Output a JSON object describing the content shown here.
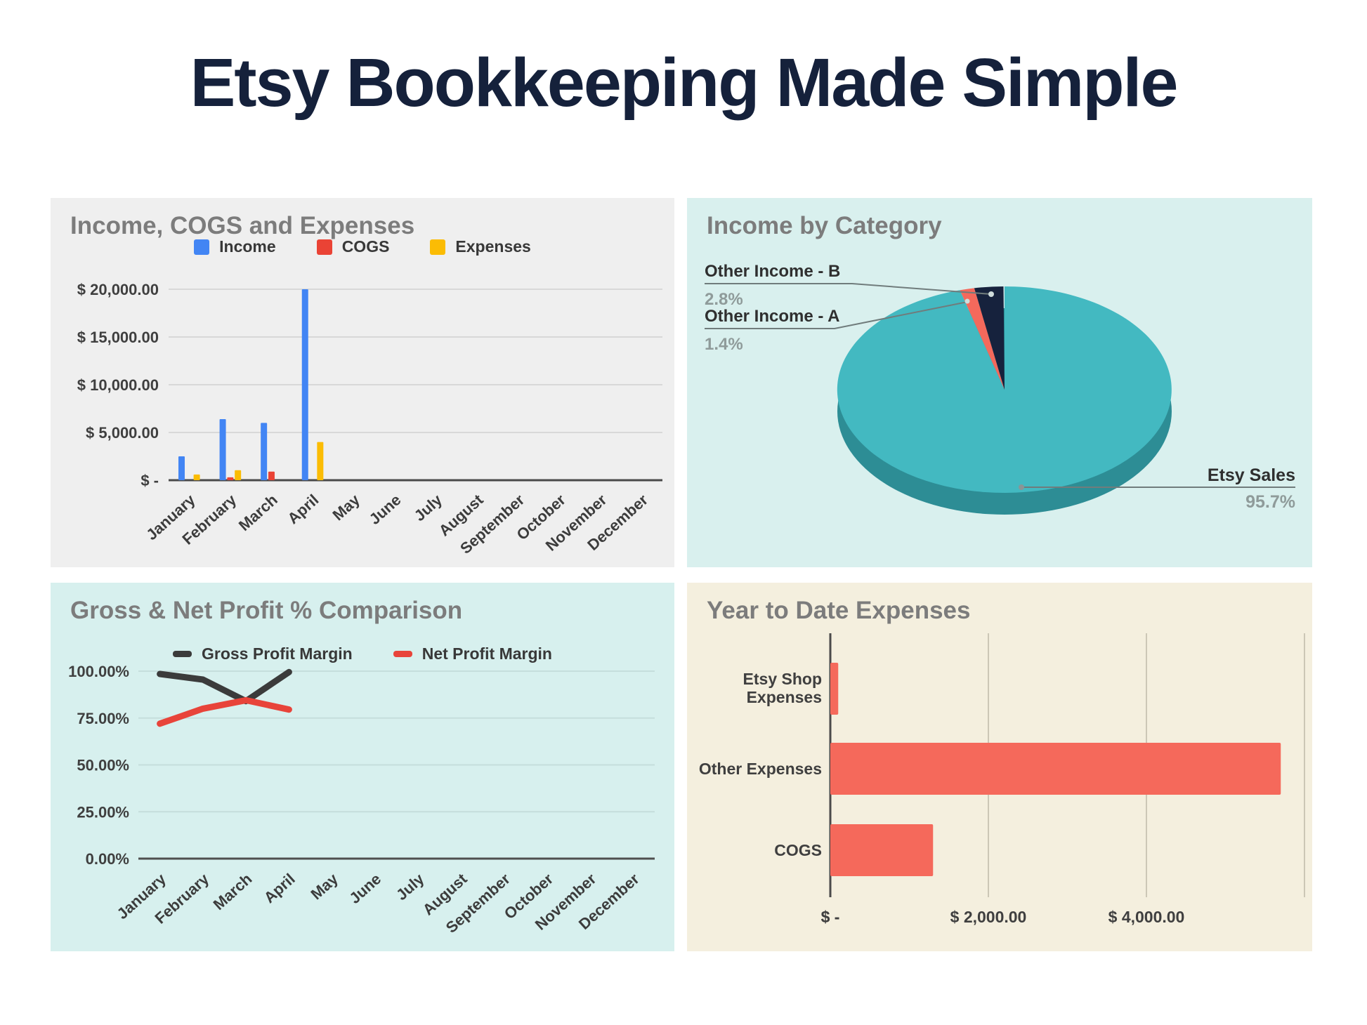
{
  "page_title": "Etsy Bookkeeping Made Simple",
  "colors": {
    "title_navy": "#15213b",
    "panel_gray": "#efefef",
    "panel_cyan": "#d9f0ee",
    "panel_cream": "#f4efde",
    "chart_title_gray": "#7c7c7c",
    "axis_text": "#3f3f3f",
    "income_blue": "#4285f4",
    "cogs_red": "#ea4335",
    "expenses_yellow": "#fbbc04",
    "pie_teal": "#43b9c1",
    "pie_teal_rim": "#2d8d95",
    "pie_navy": "#16223d",
    "pie_salmon": "#f4695c",
    "line_gross": "#3b3b3b",
    "line_net": "#e8443a",
    "hbar_salmon": "#f5695b"
  },
  "chart_data": [
    {
      "id": "income-cogs-expenses",
      "type": "bar",
      "title": "Income, COGS and Expenses",
      "categories": [
        "January",
        "February",
        "March",
        "April",
        "May",
        "June",
        "July",
        "August",
        "September",
        "October",
        "November",
        "December"
      ],
      "series": [
        {
          "name": "Income",
          "color": "#4285f4",
          "values": [
            2500,
            6400,
            6000,
            20000,
            0,
            0,
            0,
            0,
            0,
            0,
            0,
            0
          ]
        },
        {
          "name": "COGS",
          "color": "#ea4335",
          "values": [
            0,
            300,
            900,
            0,
            0,
            0,
            0,
            0,
            0,
            0,
            0,
            0
          ]
        },
        {
          "name": "Expenses",
          "color": "#fbbc04",
          "values": [
            600,
            1050,
            0,
            4000,
            0,
            0,
            0,
            0,
            0,
            0,
            0,
            0
          ]
        }
      ],
      "yticks": [
        "$ 20,000.00",
        "$ 15,000.00",
        "$ 10,000.00",
        "$ 5,000.00",
        "$ -"
      ],
      "ylim": [
        0,
        20000
      ],
      "legend_position": "top",
      "grid": true
    },
    {
      "id": "income-by-category",
      "type": "pie",
      "title": "Income by Category",
      "slices": [
        {
          "label": "Etsy Sales",
          "pct": 95.7,
          "color": "#43b9c1"
        },
        {
          "label": "Other Income - A",
          "pct": 1.4,
          "color": "#f4695c"
        },
        {
          "label": "Other Income - B",
          "pct": 2.8,
          "color": "#16223d"
        }
      ],
      "style": "3d-pie"
    },
    {
      "id": "gross-net-profit-comparison",
      "type": "line",
      "title": "Gross & Net Profit % Comparison",
      "categories": [
        "January",
        "February",
        "March",
        "April",
        "May",
        "June",
        "July",
        "August",
        "September",
        "October",
        "November",
        "December"
      ],
      "series": [
        {
          "name": "Gross Profit Margin",
          "color": "#3b3b3b",
          "values": [
            98.5,
            95.5,
            84,
            99.5
          ]
        },
        {
          "name": "Net Profit Margin",
          "color": "#e8443a",
          "values": [
            72,
            80,
            84.5,
            79.5
          ]
        }
      ],
      "yticks": [
        "100.00%",
        "75.00%",
        "50.00%",
        "25.00%",
        "0.00%"
      ],
      "ylim": [
        0,
        100
      ],
      "legend_position": "top",
      "grid": true
    },
    {
      "id": "year-to-date-expenses",
      "type": "bar-horizontal",
      "title": "Year to Date Expenses",
      "categories": [
        "Etsy Shop Expenses",
        "Other Expenses",
        "COGS"
      ],
      "values": [
        100,
        5700,
        1300
      ],
      "bar_color": "#f5695b",
      "xticks": [
        {
          "value": 0,
          "label": "$ -"
        },
        {
          "value": 2000,
          "label": "$ 2,000.00"
        },
        {
          "value": 4000,
          "label": "$ 4,000.00"
        },
        {
          "value": 6000,
          "label": ""
        }
      ],
      "xlim": [
        0,
        6000
      ],
      "grid": true
    }
  ]
}
